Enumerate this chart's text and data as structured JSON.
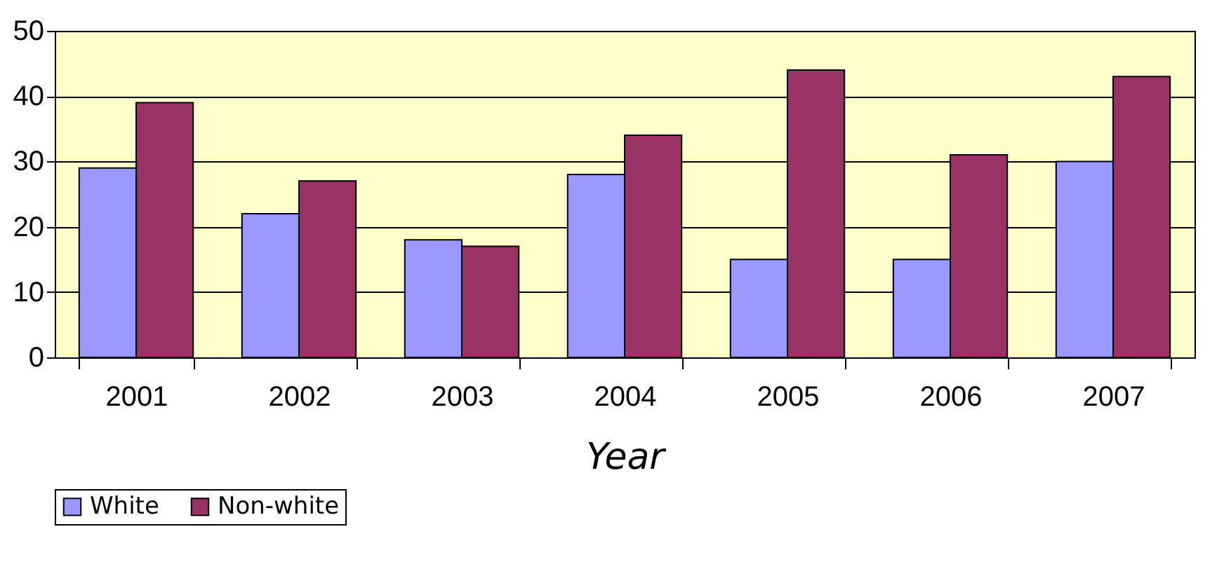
{
  "chart_data": {
    "type": "bar",
    "xlabel": "Year",
    "categories": [
      "2001",
      "2002",
      "2003",
      "2004",
      "2005",
      "2006",
      "2007"
    ],
    "series": [
      {
        "name": "White",
        "color": "#9999ff",
        "values": [
          29,
          22,
          18,
          28,
          15,
          15,
          30
        ]
      },
      {
        "name": "Non-white",
        "color": "#993366",
        "values": [
          39,
          27,
          17,
          34,
          44,
          31,
          43
        ]
      }
    ],
    "ylim": [
      0,
      50
    ],
    "yticks": [
      0,
      10,
      20,
      30,
      40,
      50
    ],
    "grid": "y",
    "legend": "bottom"
  }
}
